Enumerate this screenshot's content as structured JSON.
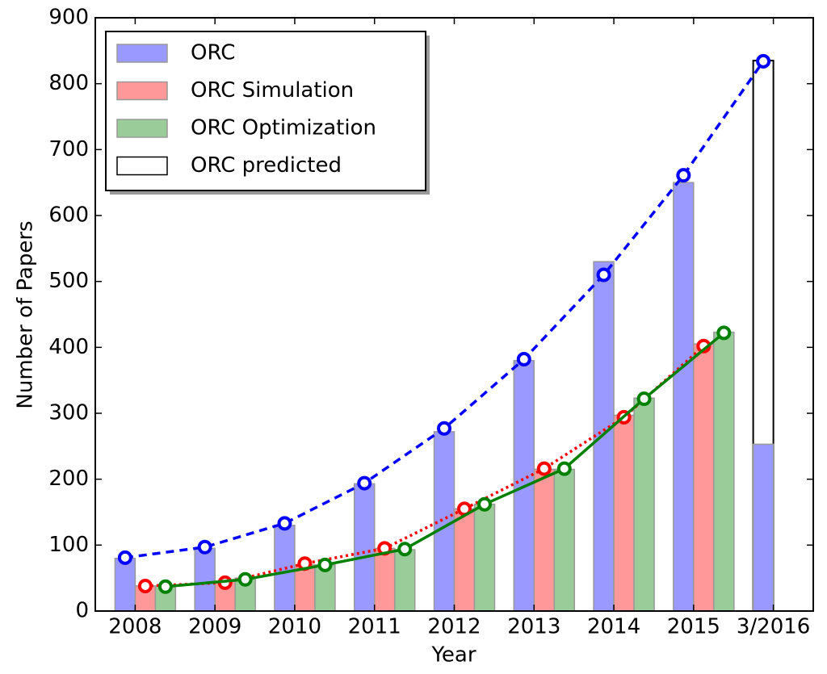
{
  "chart_data": {
    "type": "bar",
    "x_label": "Year",
    "y_label": "Number of Papers",
    "categories": [
      "2008",
      "2009",
      "2010",
      "2011",
      "2012",
      "2013",
      "2014",
      "2015",
      "3/2016"
    ],
    "series": [
      {
        "name": "ORC",
        "color": "#9999ff",
        "values": [
          80,
          95,
          130,
          193,
          272,
          380,
          530,
          650,
          253
        ]
      },
      {
        "name": "ORC Simulation",
        "color": "#ff9999",
        "values": [
          38,
          45,
          70,
          95,
          155,
          215,
          297,
          405,
          null
        ]
      },
      {
        "name": "ORC Optimization",
        "color": "#99cc99",
        "values": [
          38,
          50,
          70,
          93,
          162,
          215,
          323,
          423,
          null
        ]
      },
      {
        "name": "ORC predicted",
        "color": "#ffffff",
        "values": [
          null,
          null,
          null,
          null,
          null,
          null,
          null,
          null,
          835
        ]
      }
    ],
    "fits": [
      {
        "color": "#0000ff",
        "style": "dashed",
        "values": [
          81,
          97,
          133,
          194,
          277,
          382,
          510,
          661,
          834
        ]
      },
      {
        "color": "#ff0000",
        "style": "dotted",
        "values": [
          38,
          43,
          72,
          95,
          155,
          216,
          294,
          402,
          null
        ]
      },
      {
        "color": "#008000",
        "style": "solid",
        "values": [
          37,
          48,
          70,
          94,
          162,
          216,
          322,
          422,
          null
        ]
      }
    ],
    "ylim": [
      0,
      900
    ],
    "yticks": [
      0,
      100,
      200,
      300,
      400,
      500,
      600,
      700,
      800,
      900
    ],
    "legend": "upper left"
  }
}
